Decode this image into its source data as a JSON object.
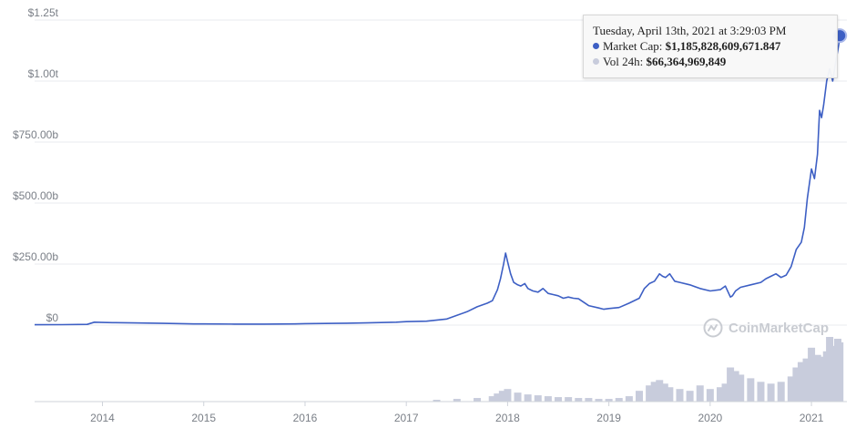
{
  "chart_data": {
    "type": "line",
    "y_ticks": [
      "$1.25t",
      "$1.00t",
      "$750.00b",
      "$500.00b",
      "$250.00b",
      "$0"
    ],
    "y_tick_values": [
      1250,
      1000,
      750,
      500,
      250,
      0
    ],
    "x_ticks": [
      "2014",
      "2015",
      "2016",
      "2017",
      "2018",
      "2019",
      "2020",
      "2021"
    ],
    "x_tick_values": [
      2014,
      2015,
      2016,
      2017,
      2018,
      2019,
      2020,
      2021
    ],
    "xlim": [
      2013.33,
      2021.35
    ],
    "ylim": [
      0,
      1250
    ],
    "grid": true,
    "colors": {
      "market_cap": "#3d5fc4",
      "volume": "#c8ccdc",
      "grid": "#e9ebef"
    },
    "series": [
      {
        "name": "Market Cap",
        "x": [
          2013.33,
          2013.6,
          2013.85,
          2013.92,
          2014.0,
          2014.1,
          2014.3,
          2014.6,
          2014.9,
          2015.0,
          2015.3,
          2015.6,
          2015.9,
          2016.0,
          2016.3,
          2016.6,
          2016.9,
          2017.0,
          2017.2,
          2017.4,
          2017.5,
          2017.6,
          2017.7,
          2017.8,
          2017.85,
          2017.9,
          2017.93,
          2017.96,
          2017.98,
          2018.0,
          2018.03,
          2018.06,
          2018.1,
          2018.13,
          2018.17,
          2018.2,
          2018.25,
          2018.3,
          2018.35,
          2018.4,
          2018.45,
          2018.5,
          2018.55,
          2018.6,
          2018.65,
          2018.7,
          2018.8,
          2018.9,
          2018.95,
          2019.0,
          2019.1,
          2019.2,
          2019.3,
          2019.35,
          2019.4,
          2019.45,
          2019.5,
          2019.53,
          2019.56,
          2019.6,
          2019.65,
          2019.7,
          2019.8,
          2019.9,
          2020.0,
          2020.1,
          2020.15,
          2020.2,
          2020.22,
          2020.25,
          2020.3,
          2020.4,
          2020.5,
          2020.55,
          2020.6,
          2020.65,
          2020.7,
          2020.75,
          2020.8,
          2020.85,
          2020.9,
          2020.93,
          2020.96,
          2021.0,
          2021.03,
          2021.06,
          2021.08,
          2021.1,
          2021.12,
          2021.15,
          2021.18,
          2021.21,
          2021.24,
          2021.27,
          2021.28
        ],
        "values": [
          1.5,
          2,
          3,
          12,
          11,
          10,
          9,
          7,
          5,
          5,
          4,
          4,
          5,
          6,
          7,
          9,
          12,
          14,
          16,
          25,
          40,
          55,
          75,
          90,
          100,
          145,
          190,
          250,
          295,
          260,
          210,
          175,
          165,
          160,
          170,
          150,
          140,
          135,
          150,
          130,
          125,
          120,
          110,
          115,
          110,
          108,
          80,
          70,
          65,
          68,
          72,
          90,
          110,
          150,
          170,
          180,
          210,
          200,
          195,
          210,
          180,
          175,
          165,
          150,
          140,
          145,
          160,
          115,
          120,
          140,
          155,
          165,
          175,
          190,
          200,
          210,
          195,
          205,
          240,
          310,
          340,
          400,
          520,
          640,
          600,
          700,
          880,
          850,
          900,
          1000,
          1050,
          1000,
          1080,
          1150,
          1186
        ]
      },
      {
        "name": "Vol 24h",
        "x": [
          2017.3,
          2017.5,
          2017.7,
          2017.85,
          2017.9,
          2017.95,
          2018.0,
          2018.1,
          2018.2,
          2018.3,
          2018.4,
          2018.5,
          2018.6,
          2018.7,
          2018.8,
          2018.9,
          2019.0,
          2019.1,
          2019.2,
          2019.3,
          2019.4,
          2019.45,
          2019.5,
          2019.55,
          2019.6,
          2019.7,
          2019.8,
          2019.9,
          2020.0,
          2020.1,
          2020.15,
          2020.2,
          2020.25,
          2020.3,
          2020.4,
          2020.5,
          2020.6,
          2020.7,
          2020.8,
          2020.85,
          2020.9,
          2020.95,
          2021.0,
          2021.03,
          2021.06,
          2021.09,
          2021.12,
          2021.15,
          2021.18,
          2021.2,
          2021.23,
          2021.26,
          2021.28
        ],
        "values": [
          2,
          3,
          4,
          6,
          9,
          12,
          14,
          10,
          8,
          7,
          6,
          5,
          5,
          4,
          4,
          3,
          3,
          4,
          6,
          12,
          18,
          22,
          24,
          20,
          16,
          14,
          12,
          18,
          14,
          16,
          20,
          38,
          34,
          30,
          26,
          22,
          20,
          22,
          28,
          38,
          44,
          48,
          60,
          42,
          52,
          46,
          50,
          56,
          72,
          56,
          62,
          70,
          66
        ]
      }
    ]
  },
  "tooltip": {
    "title": "Tuesday, April 13th, 2021 at 3:29:03 PM",
    "market_cap_label": "Market Cap:",
    "market_cap_value": "$1,185,828,609,671.847",
    "volume_label": "Vol 24h:",
    "volume_value": "$66,364,969,849"
  },
  "watermark": {
    "text": "CoinMarketCap"
  }
}
